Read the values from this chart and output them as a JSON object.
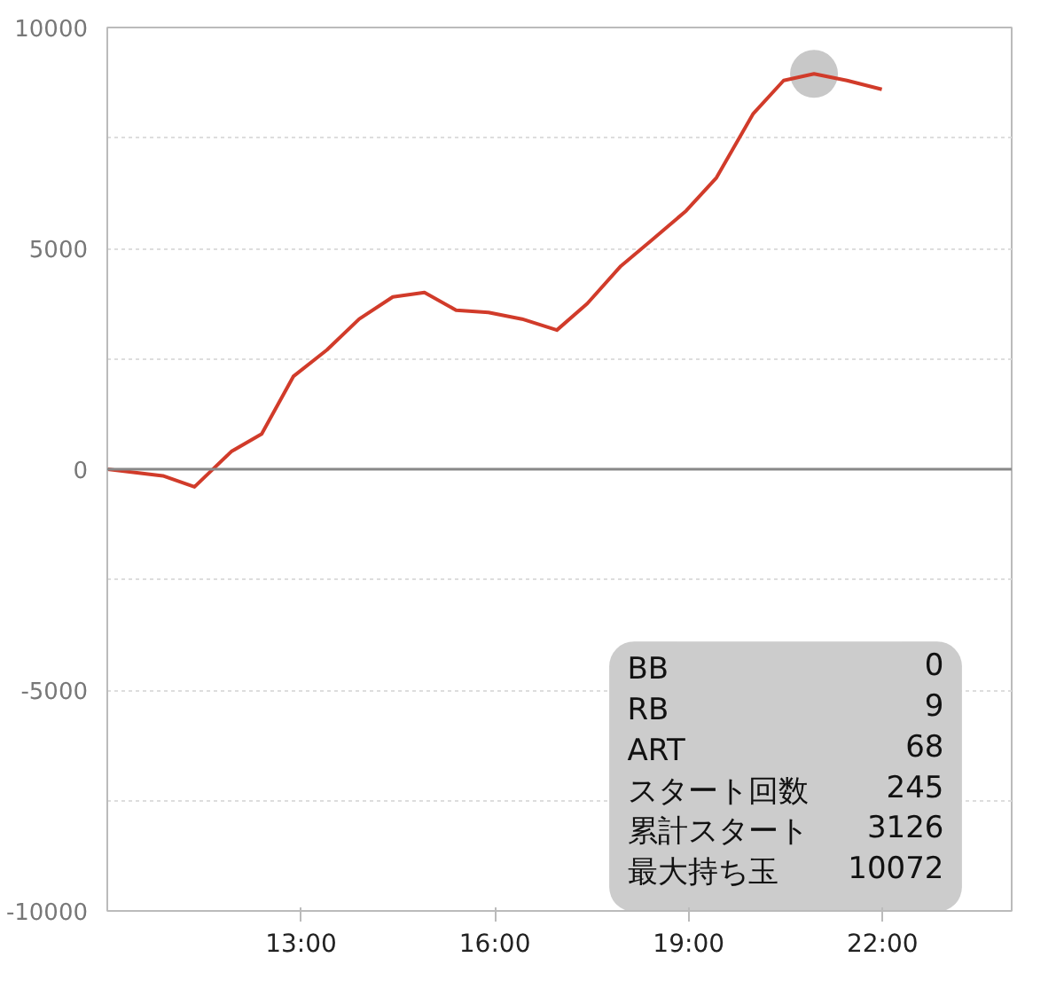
{
  "chart_data": {
    "type": "line",
    "x": [
      10.0,
      10.86,
      11.35,
      11.92,
      12.39,
      12.88,
      13.4,
      13.9,
      14.42,
      14.91,
      15.4,
      15.9,
      16.42,
      16.96,
      17.43,
      17.95,
      18.44,
      18.96,
      19.43,
      20.0,
      20.47,
      20.94,
      21.45,
      21.99
    ],
    "series": [
      {
        "color": "#d13b2a",
        "values": [
          0,
          -150,
          -400,
          400,
          800,
          2100,
          2700,
          3400,
          3900,
          4000,
          3600,
          3550,
          3400,
          3150,
          3750,
          4600,
          5200,
          5850,
          6600,
          8050,
          8800,
          8950,
          8800,
          8600
        ]
      },
      {
        "type": "scatter",
        "marker": "circle",
        "color": "#c8c8c8",
        "x": [
          20.94
        ],
        "values": [
          8950
        ]
      }
    ],
    "xlim": [
      10,
      24
    ],
    "ylim": [
      -10000,
      10000
    ],
    "xticks": [
      {
        "value": 13,
        "label": "13:00"
      },
      {
        "value": 16,
        "label": "16:00"
      },
      {
        "value": 19,
        "label": "19:00"
      },
      {
        "value": 22,
        "label": "22:00"
      }
    ],
    "yticks": [
      -10000,
      {
        "value": -7500,
        "label": null
      },
      -5000,
      {
        "value": -2500,
        "label": null
      },
      0,
      {
        "value": 2500,
        "label": null
      },
      5000,
      {
        "value": 7500,
        "label": null
      },
      10000
    ],
    "grid": "y",
    "ref_lines": [
      {
        "axis": "y",
        "value": 0,
        "label": null,
        "color": "#888888"
      }
    ],
    "annotations": [
      "BB",
      "0",
      "RB",
      "9",
      "ART",
      "68",
      "スタート回数",
      "245",
      "累計スタート",
      "3126",
      "最大持ち玉",
      "10072"
    ]
  }
}
